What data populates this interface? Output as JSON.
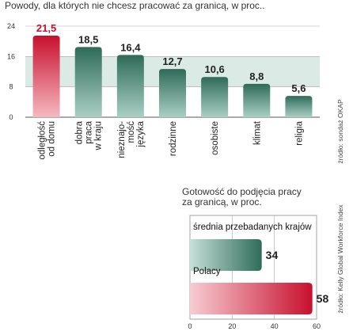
{
  "chart_data": [
    {
      "type": "bar",
      "title": "Powody, dla których nie chcesz pracować za granicą, w proc..",
      "categories": [
        [
          "odległość",
          "od domu"
        ],
        [
          "dobra",
          "praca",
          "w kraju"
        ],
        [
          "nieznajo-",
          "mość",
          "języka"
        ],
        [
          "rodzinne"
        ],
        [
          "osobiste"
        ],
        [
          "klimat"
        ],
        [
          "religia"
        ]
      ],
      "values": [
        21.5,
        18.5,
        16.4,
        12.7,
        10.6,
        8.8,
        5.6
      ],
      "value_labels": [
        "21,5",
        "18,5",
        "16,4",
        "12,7",
        "10,6",
        "8,8",
        "5,6"
      ],
      "yticks": [
        "0",
        "8",
        "16",
        "24"
      ],
      "ylim": [
        0,
        24
      ],
      "source": "źródło: sondaż OKAP",
      "highlight_index": 0
    },
    {
      "type": "bar",
      "orientation": "horizontal",
      "title": [
        "Gotowość do podjęcia pracy",
        "za granicą, w proc."
      ],
      "categories": [
        "średnia przebadanych krajów",
        "Polacy"
      ],
      "values": [
        34,
        58
      ],
      "value_labels": [
        "34",
        "58"
      ],
      "xticks": [
        "0",
        "20",
        "40",
        "60"
      ],
      "xlim": [
        0,
        60
      ],
      "source": "źródło: Kelly Global Workforce Index"
    }
  ],
  "colors": {
    "green_top": "#2f6b58",
    "green_bottom": "#a9cfc4",
    "red_top": "#c8102e",
    "red_bottom": "#f7cdd2",
    "band": "#dbeae4",
    "grid": "#aaaaaa"
  }
}
